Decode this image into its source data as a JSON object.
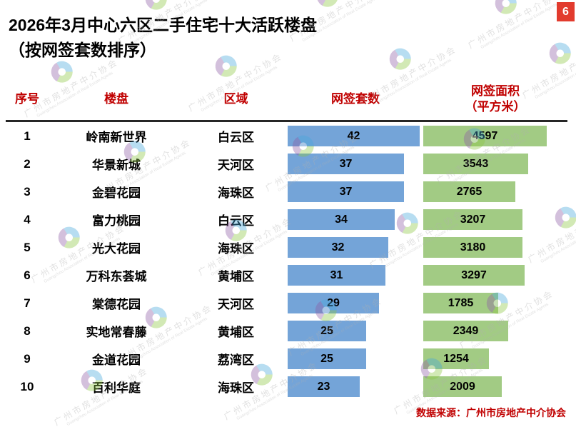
{
  "page": {
    "badge": "6",
    "title_line1": "2026年3月中心六区二手住宅十大活跃楼盘",
    "title_line2": "（按网签套数排序）",
    "source": "数据来源：广州市房地产中介协会"
  },
  "table": {
    "headers": {
      "index": "序号",
      "property": "楼盘",
      "district": "区域",
      "units": "网签套数",
      "area_line1": "网签面积",
      "area_line2": "（平方米）"
    },
    "rows": [
      {
        "index": "1",
        "property": "岭南新世界",
        "district": "白云区",
        "units": 42,
        "area": 4597
      },
      {
        "index": "2",
        "property": "华景新城",
        "district": "天河区",
        "units": 37,
        "area": 3543
      },
      {
        "index": "3",
        "property": "金碧花园",
        "district": "海珠区",
        "units": 37,
        "area": 2765
      },
      {
        "index": "4",
        "property": "富力桃园",
        "district": "白云区",
        "units": 34,
        "area": 3207
      },
      {
        "index": "5",
        "property": "光大花园",
        "district": "海珠区",
        "units": 32,
        "area": 3180
      },
      {
        "index": "6",
        "property": "万科东荟城",
        "district": "黄埔区",
        "units": 31,
        "area": 3297
      },
      {
        "index": "7",
        "property": "棠德花园",
        "district": "天河区",
        "units": 29,
        "area": 1785
      },
      {
        "index": "8",
        "property": "实地常春藤",
        "district": "黄埔区",
        "units": 25,
        "area": 2349
      },
      {
        "index": "9",
        "property": "金道花园",
        "district": "荔湾区",
        "units": 25,
        "area": 1254
      },
      {
        "index": "10",
        "property": "百利华庭",
        "district": "海珠区",
        "units": 23,
        "area": 2009
      }
    ]
  },
  "watermark": {
    "text": "广州市房地产中介协会",
    "subtext": "Guangzhou Association of Real Estate Agents"
  },
  "colors": {
    "units_bar": "#74a4d8",
    "area_bar": "#a2cb84",
    "header_text": "#c00000",
    "badge_bg": "#e23b2e",
    "source_text": "#c00000",
    "watermark_logo": [
      "#45a7db",
      "#8cc63f",
      "#8e5ba6"
    ]
  },
  "chart_data": {
    "type": "bar",
    "orientation": "horizontal",
    "title": "2026年3月中心六区二手住宅十大活跃楼盘（按网签套数排序）",
    "categories": [
      "岭南新世界",
      "华景新城",
      "金碧花园",
      "富力桃园",
      "光大花园",
      "万科东荟城",
      "棠德花园",
      "实地常春藤",
      "金道花园",
      "百利华庭"
    ],
    "series": [
      {
        "name": "网签套数",
        "values": [
          42,
          37,
          37,
          34,
          32,
          31,
          29,
          25,
          25,
          23
        ],
        "color": "#74a4d8"
      },
      {
        "name": "网签面积（平方米）",
        "values": [
          4597,
          3543,
          2765,
          3207,
          3180,
          3297,
          1785,
          2349,
          1254,
          2009
        ],
        "color": "#a2cb84"
      }
    ],
    "legend": false,
    "grid": false,
    "value_labels": "inside-center",
    "sort": "网签套数 descending"
  }
}
